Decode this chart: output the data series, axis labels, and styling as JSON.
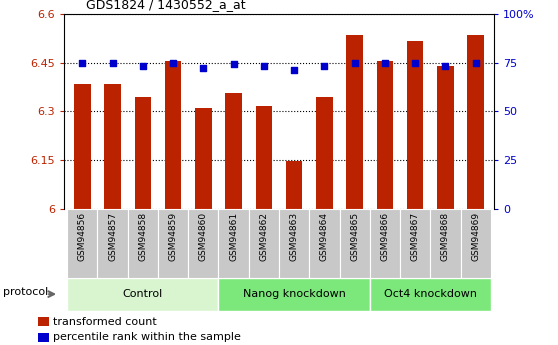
{
  "title": "GDS1824 / 1430552_a_at",
  "samples": [
    "GSM94856",
    "GSM94857",
    "GSM94858",
    "GSM94859",
    "GSM94860",
    "GSM94861",
    "GSM94862",
    "GSM94863",
    "GSM94864",
    "GSM94865",
    "GSM94866",
    "GSM94867",
    "GSM94868",
    "GSM94869"
  ],
  "red_values": [
    6.385,
    6.385,
    6.345,
    6.455,
    6.31,
    6.355,
    6.315,
    6.148,
    6.345,
    6.535,
    6.455,
    6.515,
    6.44,
    6.535
  ],
  "blue_values": [
    75,
    75,
    73,
    75,
    72,
    74,
    73,
    71,
    73,
    75,
    75,
    75,
    73,
    75
  ],
  "ylim_left": [
    6.0,
    6.6
  ],
  "ylim_right": [
    0,
    100
  ],
  "yticks_left": [
    6.0,
    6.15,
    6.3,
    6.45,
    6.6
  ],
  "yticks_right": [
    0,
    25,
    50,
    75,
    100
  ],
  "ytick_labels_left": [
    "6",
    "6.15",
    "6.3",
    "6.45",
    "6.6"
  ],
  "ytick_labels_right": [
    "0",
    "25",
    "50",
    "75",
    "100%"
  ],
  "groups": [
    {
      "label": "Control",
      "start": 0,
      "end": 5,
      "color": "#d8f5d0"
    },
    {
      "label": "Nanog knockdown",
      "start": 5,
      "end": 10,
      "color": "#7ce87c"
    },
    {
      "label": "Oct4 knockdown",
      "start": 10,
      "end": 14,
      "color": "#7ce87c"
    }
  ],
  "protocol_label": "protocol",
  "bar_color_red": "#bb2200",
  "bar_color_blue": "#0000cc",
  "plot_bg": "#ffffff",
  "xtick_bg": "#c8c8c8",
  "legend_red": "transformed count",
  "legend_blue": "percentile rank within the sample"
}
